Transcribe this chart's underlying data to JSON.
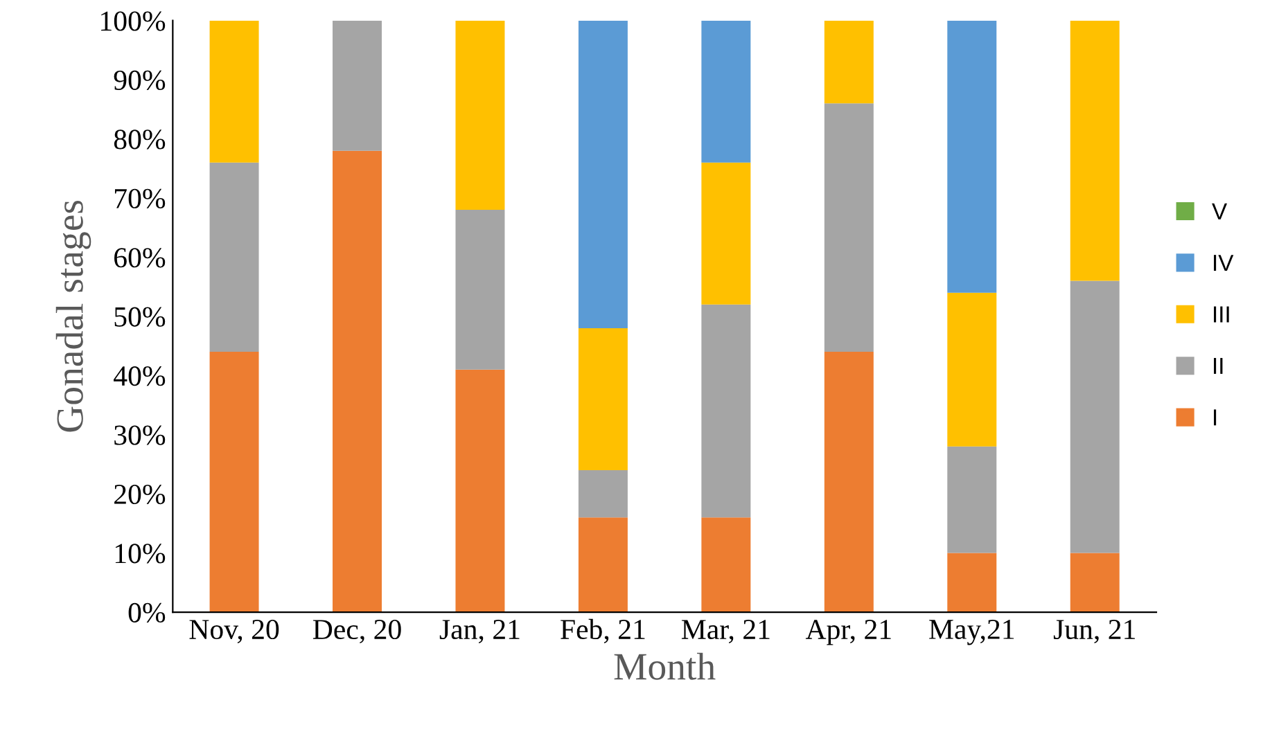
{
  "chart_data": {
    "type": "bar",
    "stacked": true,
    "xlabel": "Month",
    "ylabel": "Gonadal stages",
    "categories": [
      "Nov, 20",
      "Dec, 20",
      "Jan, 21",
      "Feb, 21",
      "Mar, 21",
      "Apr, 21",
      "May,21",
      "Jun, 21"
    ],
    "series": [
      {
        "name": "I",
        "color": "#ed7d31",
        "values": [
          44,
          78,
          41,
          16,
          16,
          44,
          10,
          10
        ]
      },
      {
        "name": "II",
        "color": "#a5a5a5",
        "values": [
          32,
          22,
          27,
          8,
          36,
          42,
          18,
          46
        ]
      },
      {
        "name": "III",
        "color": "#ffc000",
        "values": [
          24,
          0,
          32,
          24,
          24,
          14,
          26,
          44
        ]
      },
      {
        "name": "IV",
        "color": "#5b9bd5",
        "values": [
          0,
          0,
          0,
          52,
          24,
          0,
          46,
          0
        ]
      },
      {
        "name": "V",
        "color": "#70ad47",
        "values": [
          0,
          0,
          0,
          0,
          0,
          0,
          0,
          0
        ]
      }
    ],
    "ylim": [
      0,
      100
    ],
    "yticks": [
      {
        "value": 0,
        "label": "0%"
      },
      {
        "value": 10,
        "label": "10%"
      },
      {
        "value": 20,
        "label": "20%"
      },
      {
        "value": 30,
        "label": "30%"
      },
      {
        "value": 40,
        "label": "40%"
      },
      {
        "value": 50,
        "label": "50%"
      },
      {
        "value": 60,
        "label": "60%"
      },
      {
        "value": 70,
        "label": "70%"
      },
      {
        "value": 80,
        "label": "80%"
      },
      {
        "value": 90,
        "label": "90%"
      },
      {
        "value": 100,
        "label": "100%"
      }
    ],
    "grid": false,
    "legend": "right"
  }
}
